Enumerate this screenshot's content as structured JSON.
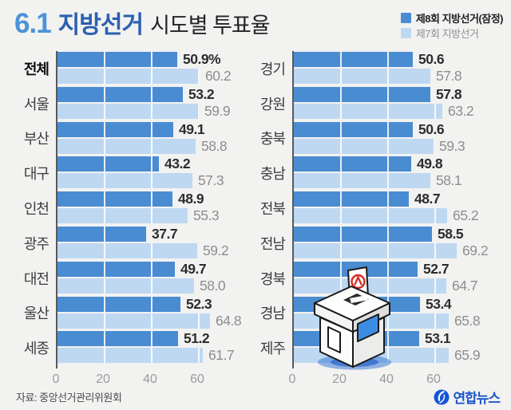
{
  "title": {
    "prefix": "6.1",
    "name": "지방선거",
    "suffix": "시도별 투표율"
  },
  "legend": {
    "items": [
      {
        "label": "제8회 지방선거(잠정)",
        "color": "#4a8cd2"
      },
      {
        "label": "제7회 지방선거",
        "color": "#bed8f2"
      }
    ]
  },
  "colors": {
    "background": "#f2f2f1",
    "bar_primary": "#4a8cd2",
    "bar_secondary": "#bed8f2",
    "axis_line": "#58595b",
    "title_number": "#4d93d9",
    "title_main": "#2b60b0",
    "value_primary_text": "#2d2d2d",
    "value_secondary_text": "#8d8d8d",
    "logo_blue": "#1d56cc",
    "ballot_stamp_red": "#d42a1e",
    "ballot_shadow_blue": "#2e6fd4"
  },
  "chart_data": [
    {
      "type": "bar",
      "orientation": "horizontal",
      "title": "시도별 투표율 (좌측)",
      "categories": [
        "전체",
        "서울",
        "부산",
        "대구",
        "인천",
        "광주",
        "대전",
        "울산",
        "세종"
      ],
      "bold_category_index": 0,
      "xlim": [
        0,
        80
      ],
      "ticks": [
        0,
        20,
        40,
        60
      ],
      "grid": true,
      "series": [
        {
          "name": "제8회 지방선거(잠정)",
          "values": [
            50.9,
            53.2,
            49.1,
            43.2,
            48.9,
            37.7,
            49.7,
            52.3,
            51.2
          ],
          "labels": [
            "50.9%",
            "53.2",
            "49.1",
            "43.2",
            "48.9",
            "37.7",
            "49.7",
            "52.3",
            "51.2"
          ]
        },
        {
          "name": "제7회 지방선거",
          "values": [
            60.2,
            59.9,
            58.8,
            57.3,
            55.3,
            59.2,
            58.0,
            64.8,
            61.7
          ],
          "labels": [
            "60.2",
            "59.9",
            "58.8",
            "57.3",
            "55.3",
            "59.2",
            "58.0",
            "64.8",
            "61.7"
          ]
        }
      ]
    },
    {
      "type": "bar",
      "orientation": "horizontal",
      "title": "시도별 투표율 (우측)",
      "categories": [
        "경기",
        "강원",
        "충북",
        "충남",
        "전북",
        "전남",
        "경북",
        "경남",
        "제주"
      ],
      "bold_category_index": -1,
      "xlim": [
        0,
        80
      ],
      "ticks": [
        0,
        20,
        40,
        60
      ],
      "grid": true,
      "series": [
        {
          "name": "제8회 지방선거(잠정)",
          "values": [
            50.6,
            57.8,
            50.6,
            49.8,
            48.7,
            58.5,
            52.7,
            53.4,
            53.1
          ],
          "labels": [
            "50.6",
            "57.8",
            "50.6",
            "49.8",
            "48.7",
            "58.5",
            "52.7",
            "53.4",
            "53.1"
          ]
        },
        {
          "name": "제7회 지방선거",
          "values": [
            57.8,
            63.2,
            59.3,
            58.1,
            65.2,
            69.2,
            64.7,
            65.8,
            65.9
          ],
          "labels": [
            "57.8",
            "63.2",
            "59.3",
            "58.1",
            "65.2",
            "69.2",
            "64.7",
            "65.8",
            "65.9"
          ]
        }
      ]
    }
  ],
  "source": "자료: 중앙선거관리위원회",
  "brand": {
    "name": "연합뉴스"
  }
}
